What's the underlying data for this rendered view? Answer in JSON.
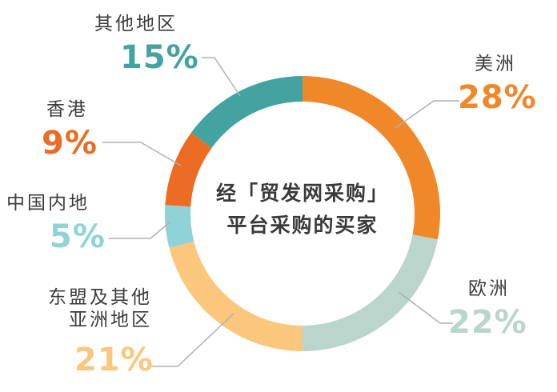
{
  "chart_data": {
    "type": "pie",
    "donut": true,
    "title_lines": [
      "经「贸发网采购」",
      "平台采购的买家"
    ],
    "slices": [
      {
        "label": "美洲",
        "value": 28,
        "display": "28%",
        "color": "#f0882a"
      },
      {
        "label": "欧洲",
        "value": 22,
        "display": "22%",
        "color": "#b9d5cc"
      },
      {
        "label": "东盟及其他亚洲地区",
        "label_lines": [
          "东盟及其他",
          "亚洲地区"
        ],
        "value": 21,
        "display": "21%",
        "color": "#fbc77d"
      },
      {
        "label": "中国内地",
        "value": 5,
        "display": "5%",
        "color": "#8fd3d8"
      },
      {
        "label": "香港",
        "value": 9,
        "display": "9%",
        "color": "#ec6c24"
      },
      {
        "label": "其他地区",
        "value": 15,
        "display": "15%",
        "color": "#42a3a0"
      }
    ]
  }
}
